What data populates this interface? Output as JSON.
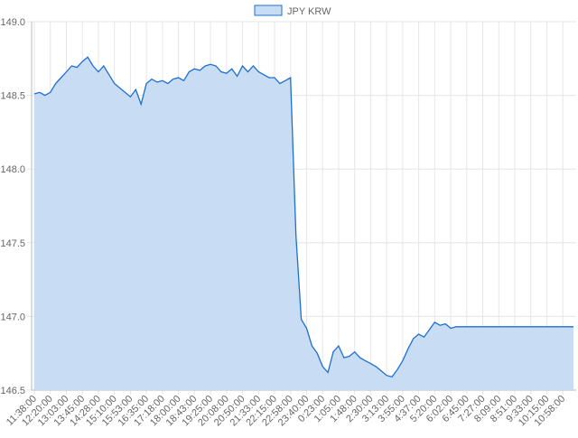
{
  "chart_data": {
    "type": "line",
    "fill": true,
    "categories": [
      "11:38:00",
      null,
      null,
      "12:20:00",
      null,
      null,
      "13:03:00",
      null,
      null,
      "13:45:00",
      null,
      null,
      "14:28:00",
      null,
      null,
      "15:10:00",
      null,
      null,
      "15:53:00",
      null,
      null,
      "16:35:00",
      null,
      null,
      "17:18:00",
      null,
      null,
      "18:00:00",
      null,
      null,
      "18:43:00",
      null,
      null,
      "19:25:00",
      null,
      null,
      "20:08:00",
      null,
      null,
      "20:50:00",
      null,
      null,
      "21:33:00",
      null,
      null,
      "22:15:00",
      null,
      null,
      "22:58:00",
      null,
      null,
      "23:40:00",
      null,
      null,
      "0:23:00",
      null,
      null,
      "1:05:00",
      null,
      null,
      "1:48:00",
      null,
      null,
      "2:30:00",
      null,
      null,
      "3:13:00",
      null,
      null,
      "3:55:00",
      null,
      null,
      "4:37:00",
      null,
      null,
      "5:20:00",
      null,
      null,
      "6:02:00",
      null,
      null,
      "6:45:00",
      null,
      null,
      "7:27:00",
      null,
      null,
      "8:09:00",
      null,
      null,
      "8:51:00",
      null,
      null,
      "9:33:00",
      null,
      null,
      "10:15:00",
      null,
      null,
      "10:58:00",
      null,
      null
    ],
    "series": [
      {
        "name": "JPY KRW",
        "color": "#1f6fd0",
        "fill_color": "#c8dcf3",
        "values": [
          148.51,
          148.52,
          148.5,
          148.52,
          148.58,
          148.62,
          148.66,
          148.7,
          148.69,
          148.73,
          148.76,
          148.7,
          148.66,
          148.7,
          148.64,
          148.58,
          148.55,
          148.52,
          148.49,
          148.54,
          148.44,
          148.58,
          148.61,
          148.59,
          148.6,
          148.58,
          148.61,
          148.62,
          148.6,
          148.66,
          148.68,
          148.67,
          148.7,
          148.71,
          148.7,
          148.66,
          148.65,
          148.68,
          148.63,
          148.7,
          148.66,
          148.7,
          148.66,
          148.64,
          148.62,
          148.62,
          148.58,
          148.6,
          148.62,
          147.55,
          146.98,
          146.92,
          146.8,
          146.75,
          146.66,
          146.62,
          146.76,
          146.8,
          146.72,
          146.73,
          146.76,
          146.72,
          146.7,
          146.68,
          146.66,
          146.63,
          146.6,
          146.59,
          146.64,
          146.7,
          146.78,
          146.85,
          146.88,
          146.86,
          146.91,
          146.96,
          146.94,
          146.95,
          146.92,
          146.93,
          146.93,
          146.93,
          146.93,
          146.93,
          146.93,
          146.93,
          146.93,
          146.93,
          146.93,
          146.93,
          146.93,
          146.93,
          146.93,
          146.93,
          146.93,
          146.93,
          146.93,
          146.93,
          146.93,
          146.93,
          146.93,
          146.93
        ]
      }
    ],
    "ylim": [
      146.5,
      149
    ],
    "yticks": [
      {
        "value": 146.5,
        "label": "146.5"
      },
      {
        "value": 147,
        "label": "147.0"
      },
      {
        "value": 147.5,
        "label": "147.5"
      },
      {
        "value": 148,
        "label": "148.0"
      },
      {
        "value": 148.5,
        "label": "148.5"
      },
      {
        "value": 149,
        "label": "149.0"
      }
    ],
    "grid": true,
    "legend": "top"
  }
}
